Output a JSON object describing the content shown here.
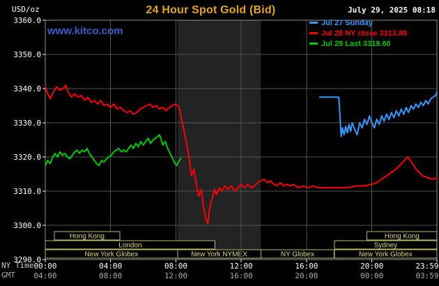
{
  "header": {
    "units": "USD/oz",
    "title": "24 Hour Spot Gold (Bid)",
    "datetime": "July 29, 2025 08:18",
    "watermark": "www.kitco.com"
  },
  "footer": {
    "ny_time_label": "NY Time",
    "gmt_label": "GMT"
  },
  "colors": {
    "background": "#000000",
    "title": "#e3a712",
    "datetime_text": "#ffffff",
    "watermark": "#3a5fd0",
    "grid": "#555555",
    "plot_border": "#909090",
    "nymex_band": "#232323",
    "session_border": "#b9b96a",
    "session_text": "#d8d882",
    "axis_text": "#ffffff",
    "gmt_text": "#aaaaaa"
  },
  "chart_data": {
    "type": "line",
    "title": "24 Hour Spot Gold (Bid)",
    "timestamp": "July 29, 2025 08:18",
    "x": {
      "unit": "hour (NY time)",
      "range": [
        0,
        23.983
      ],
      "tick_hours": [
        0,
        4,
        8,
        12,
        16,
        20,
        23.983
      ],
      "ny_tick_labels": [
        "00:00",
        "04:00",
        "08:00",
        "12:00",
        "16:00",
        "20:00",
        "23:59"
      ],
      "gmt_tick_labels": [
        "04:00",
        "08:00",
        "12:00",
        "16:00",
        "20:00",
        "00:00",
        "03:59"
      ]
    },
    "y": {
      "unit": "USD/oz",
      "range": [
        3290,
        3360
      ],
      "ticks": [
        3360,
        3350,
        3340,
        3330,
        3320,
        3310,
        3300,
        3290
      ],
      "tick_labels": [
        "3360.0",
        "3350.0",
        "3340.0",
        "3330.0",
        "3320.0",
        "3310.0",
        "3300.0",
        "3290.0"
      ]
    },
    "grid": true,
    "legend_position": "top-right",
    "nymex_band_hours": [
      8.1,
      13.2
    ],
    "series": [
      {
        "id": "jul27",
        "name": "Jul 27 Sunday",
        "color": "#3399ff",
        "points": [
          [
            16.8,
            3337.5
          ],
          [
            17.98,
            3337.5
          ],
          [
            18.05,
            3331.5
          ],
          [
            18.12,
            3326.0
          ],
          [
            18.2,
            3328.5
          ],
          [
            18.3,
            3326.5
          ],
          [
            18.4,
            3329.0
          ],
          [
            18.5,
            3327.0
          ],
          [
            18.6,
            3329.5
          ],
          [
            18.7,
            3327.5
          ],
          [
            18.8,
            3330.0
          ],
          [
            18.95,
            3328.0
          ],
          [
            19.1,
            3326.5
          ],
          [
            19.25,
            3330.0
          ],
          [
            19.4,
            3328.5
          ],
          [
            19.55,
            3331.0
          ],
          [
            19.7,
            3329.5
          ],
          [
            19.85,
            3332.0
          ],
          [
            20.0,
            3330.0
          ],
          [
            20.15,
            3328.5
          ],
          [
            20.3,
            3331.0
          ],
          [
            20.45,
            3329.5
          ],
          [
            20.6,
            3332.0
          ],
          [
            20.75,
            3330.5
          ],
          [
            20.9,
            3332.5
          ],
          [
            21.05,
            3331.0
          ],
          [
            21.2,
            3333.0
          ],
          [
            21.35,
            3331.5
          ],
          [
            21.5,
            3333.5
          ],
          [
            21.65,
            3332.0
          ],
          [
            21.8,
            3334.0
          ],
          [
            21.95,
            3332.5
          ],
          [
            22.1,
            3334.5
          ],
          [
            22.25,
            3333.0
          ],
          [
            22.4,
            3335.0
          ],
          [
            22.55,
            3334.0
          ],
          [
            22.7,
            3335.5
          ],
          [
            22.85,
            3334.5
          ],
          [
            23.0,
            3336.0
          ],
          [
            23.15,
            3335.0
          ],
          [
            23.3,
            3336.5
          ],
          [
            23.45,
            3335.5
          ],
          [
            23.6,
            3337.0
          ],
          [
            23.75,
            3337.5
          ],
          [
            23.9,
            3338.0
          ],
          [
            23.983,
            3339.0
          ]
        ]
      },
      {
        "id": "jul28",
        "name": "Jul 28 NY close 3313.80",
        "color": "#ff0000",
        "close": 3313.8,
        "points": [
          [
            0.0,
            3340.5
          ],
          [
            0.15,
            3338.5
          ],
          [
            0.3,
            3337.0
          ],
          [
            0.5,
            3339.0
          ],
          [
            0.7,
            3340.5
          ],
          [
            0.9,
            3339.5
          ],
          [
            1.1,
            3340.0
          ],
          [
            1.25,
            3341.0
          ],
          [
            1.4,
            3339.0
          ],
          [
            1.6,
            3337.5
          ],
          [
            1.8,
            3338.5
          ],
          [
            2.0,
            3337.5
          ],
          [
            2.2,
            3338.0
          ],
          [
            2.4,
            3336.5
          ],
          [
            2.6,
            3337.5
          ],
          [
            2.8,
            3336.0
          ],
          [
            3.0,
            3336.5
          ],
          [
            3.2,
            3335.5
          ],
          [
            3.4,
            3336.5
          ],
          [
            3.6,
            3335.0
          ],
          [
            3.8,
            3335.5
          ],
          [
            4.0,
            3334.5
          ],
          [
            4.2,
            3335.5
          ],
          [
            4.4,
            3334.0
          ],
          [
            4.6,
            3334.5
          ],
          [
            4.8,
            3333.5
          ],
          [
            5.0,
            3333.0
          ],
          [
            5.2,
            3333.5
          ],
          [
            5.4,
            3332.5
          ],
          [
            5.6,
            3333.0
          ],
          [
            5.8,
            3334.0
          ],
          [
            6.0,
            3334.5
          ],
          [
            6.2,
            3335.0
          ],
          [
            6.4,
            3335.5
          ],
          [
            6.6,
            3334.5
          ],
          [
            6.8,
            3335.0
          ],
          [
            7.0,
            3334.0
          ],
          [
            7.2,
            3334.5
          ],
          [
            7.4,
            3333.5
          ],
          [
            7.6,
            3334.5
          ],
          [
            7.8,
            3335.0
          ],
          [
            8.0,
            3335.5
          ],
          [
            8.2,
            3334.5
          ],
          [
            8.35,
            3331.0
          ],
          [
            8.5,
            3327.5
          ],
          [
            8.65,
            3324.0
          ],
          [
            8.8,
            3320.0
          ],
          [
            8.95,
            3314.5
          ],
          [
            9.1,
            3316.5
          ],
          [
            9.25,
            3312.0
          ],
          [
            9.4,
            3308.5
          ],
          [
            9.55,
            3310.5
          ],
          [
            9.7,
            3305.0
          ],
          [
            9.85,
            3301.5
          ],
          [
            9.95,
            3300.5
          ],
          [
            10.05,
            3304.5
          ],
          [
            10.2,
            3307.5
          ],
          [
            10.35,
            3310.5
          ],
          [
            10.5,
            3309.0
          ],
          [
            10.65,
            3311.0
          ],
          [
            10.8,
            3310.0
          ],
          [
            11.0,
            3311.5
          ],
          [
            11.2,
            3310.5
          ],
          [
            11.4,
            3311.5
          ],
          [
            11.6,
            3310.0
          ],
          [
            11.8,
            3311.0
          ],
          [
            12.0,
            3312.0
          ],
          [
            12.2,
            3311.0
          ],
          [
            12.4,
            3312.0
          ],
          [
            12.6,
            3311.0
          ],
          [
            12.8,
            3311.5
          ],
          [
            13.0,
            3312.5
          ],
          [
            13.2,
            3313.0
          ],
          [
            13.4,
            3313.5
          ],
          [
            13.6,
            3312.5
          ],
          [
            13.8,
            3313.0
          ],
          [
            14.0,
            3312.0
          ],
          [
            14.2,
            3311.5
          ],
          [
            14.4,
            3312.5
          ],
          [
            14.6,
            3311.5
          ],
          [
            14.8,
            3312.0
          ],
          [
            15.0,
            3311.5
          ],
          [
            15.2,
            3312.0
          ],
          [
            15.5,
            3311.0
          ],
          [
            15.8,
            3311.5
          ],
          [
            16.1,
            3311.0
          ],
          [
            16.4,
            3311.5
          ],
          [
            16.7,
            3311.0
          ],
          [
            17.0,
            3311.0
          ],
          [
            17.5,
            3311.0
          ],
          [
            18.0,
            3311.0
          ],
          [
            18.5,
            3311.0
          ],
          [
            19.0,
            3311.5
          ],
          [
            19.5,
            3311.5
          ],
          [
            20.0,
            3312.0
          ],
          [
            20.3,
            3312.5
          ],
          [
            20.6,
            3313.5
          ],
          [
            20.9,
            3314.5
          ],
          [
            21.2,
            3315.5
          ],
          [
            21.5,
            3316.5
          ],
          [
            21.8,
            3318.0
          ],
          [
            22.0,
            3319.0
          ],
          [
            22.2,
            3320.0
          ],
          [
            22.35,
            3319.0
          ],
          [
            22.5,
            3318.0
          ],
          [
            22.7,
            3316.5
          ],
          [
            22.9,
            3315.5
          ],
          [
            23.1,
            3314.5
          ],
          [
            23.4,
            3314.0
          ],
          [
            23.7,
            3313.5
          ],
          [
            23.983,
            3313.8
          ]
        ]
      },
      {
        "id": "jul29",
        "name": "Jul 29 Last 3319.60",
        "color": "#00cc00",
        "last": 3319.6,
        "points": [
          [
            0.0,
            3317.5
          ],
          [
            0.15,
            3319.0
          ],
          [
            0.3,
            3318.0
          ],
          [
            0.45,
            3320.0
          ],
          [
            0.6,
            3321.0
          ],
          [
            0.75,
            3320.0
          ],
          [
            0.9,
            3321.5
          ],
          [
            1.05,
            3320.5
          ],
          [
            1.2,
            3321.0
          ],
          [
            1.35,
            3320.0
          ],
          [
            1.5,
            3319.5
          ],
          [
            1.65,
            3320.5
          ],
          [
            1.8,
            3321.5
          ],
          [
            1.95,
            3322.0
          ],
          [
            2.1,
            3321.0
          ],
          [
            2.25,
            3322.0
          ],
          [
            2.4,
            3321.5
          ],
          [
            2.55,
            3322.5
          ],
          [
            2.7,
            3321.0
          ],
          [
            2.85,
            3320.0
          ],
          [
            3.0,
            3319.0
          ],
          [
            3.15,
            3318.0
          ],
          [
            3.3,
            3317.5
          ],
          [
            3.45,
            3319.0
          ],
          [
            3.6,
            3318.5
          ],
          [
            3.75,
            3319.5
          ],
          [
            3.9,
            3320.0
          ],
          [
            4.05,
            3320.5
          ],
          [
            4.2,
            3321.5
          ],
          [
            4.35,
            3322.0
          ],
          [
            4.5,
            3322.5
          ],
          [
            4.65,
            3321.5
          ],
          [
            4.8,
            3322.0
          ],
          [
            4.95,
            3321.5
          ],
          [
            5.1,
            3322.5
          ],
          [
            5.25,
            3323.5
          ],
          [
            5.4,
            3322.5
          ],
          [
            5.55,
            3324.0
          ],
          [
            5.7,
            3323.0
          ],
          [
            5.85,
            3324.5
          ],
          [
            6.0,
            3323.5
          ],
          [
            6.15,
            3324.5
          ],
          [
            6.3,
            3325.5
          ],
          [
            6.45,
            3324.0
          ],
          [
            6.6,
            3325.0
          ],
          [
            6.75,
            3325.5
          ],
          [
            6.9,
            3326.0
          ],
          [
            7.0,
            3326.5
          ],
          [
            7.1,
            3325.0
          ],
          [
            7.2,
            3323.5
          ],
          [
            7.35,
            3324.5
          ],
          [
            7.5,
            3322.5
          ],
          [
            7.65,
            3321.0
          ],
          [
            7.8,
            3319.5
          ],
          [
            7.95,
            3318.0
          ],
          [
            8.05,
            3317.5
          ],
          [
            8.15,
            3318.5
          ],
          [
            8.3,
            3319.6
          ]
        ]
      }
    ],
    "sessions": [
      {
        "row": 0,
        "start": 0.55,
        "end": 4.56,
        "label": "Hong Kong"
      },
      {
        "row": 0,
        "start": 19.7,
        "end": 23.983,
        "label": "Hong Kong"
      },
      {
        "row": 1,
        "start": 0.0,
        "end": 10.4,
        "label": "London"
      },
      {
        "row": 1,
        "start": 17.7,
        "end": 23.983,
        "label": "Sydney"
      },
      {
        "row": 2,
        "start": 0.0,
        "end": 8.1,
        "label": "New York Globex"
      },
      {
        "row": 2,
        "start": 8.1,
        "end": 13.2,
        "label": "New York NYMEX"
      },
      {
        "row": 2,
        "start": 13.2,
        "end": 17.7,
        "label": "NY Globex"
      },
      {
        "row": 2,
        "start": 17.7,
        "end": 23.983,
        "label": "New York Globex"
      }
    ]
  }
}
